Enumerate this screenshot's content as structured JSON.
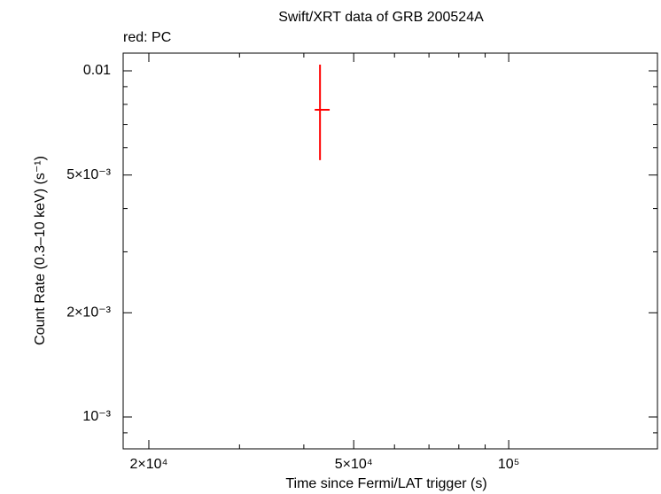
{
  "chart_data": {
    "type": "errorbar",
    "title": "Swift/XRT data of GRB 200524A",
    "legend_text": "red: PC",
    "x_label": "Time since Fermi/LAT trigger (s)",
    "y_label": "Count Rate (0.3–10 keV) (s⁻¹)",
    "xscale": "log",
    "yscale": "log",
    "xlim": [
      17830,
      194500
    ],
    "ylim": [
      0.000809,
      0.01125
    ],
    "xticks": [
      {
        "value": 20000,
        "label": "2×10⁴"
      },
      {
        "value": 50000,
        "label": "5×10⁴"
      },
      {
        "value": 100000,
        "label": "10⁵"
      }
    ],
    "yticks": [
      {
        "value": 0.001,
        "label": "10⁻³"
      },
      {
        "value": 0.002,
        "label": "2×10⁻³"
      },
      {
        "value": 0.005,
        "label": "5×10⁻³"
      },
      0.01
    ],
    "minor_xticks": [
      30000,
      40000,
      60000,
      70000,
      80000,
      90000
    ],
    "minor_yticks": [
      0.0009,
      0.003,
      0.004,
      0.006,
      0.007,
      0.008,
      0.009
    ],
    "series": [
      {
        "color": "#ff0000",
        "x": [
          43000
        ],
        "xerr_minus": [
          1000
        ],
        "xerr_plus": [
          1900
        ],
        "y": [
          0.00772
        ],
        "yerr_minus": [
          0.0022
        ],
        "yerr_plus": [
          0.0027
        ]
      }
    ]
  }
}
